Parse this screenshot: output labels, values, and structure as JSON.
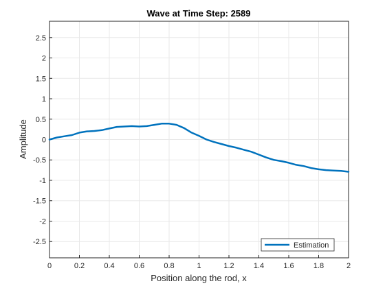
{
  "chart_data": {
    "type": "line",
    "title": "Wave at Time Step: 2589",
    "xlabel": "Position along the rod, x",
    "ylabel": "Amplitude",
    "xlim": [
      0,
      2
    ],
    "ylim": [
      -2.9,
      2.9
    ],
    "xticks": [
      0,
      0.2,
      0.4,
      0.6,
      0.8,
      1,
      1.2,
      1.4,
      1.6,
      1.8,
      2
    ],
    "xtick_labels": [
      "0",
      "0.2",
      "0.4",
      "0.6",
      "0.8",
      "1",
      "1.2",
      "1.4",
      "1.6",
      "1.8",
      "2"
    ],
    "yticks": [
      2.5,
      2,
      1.5,
      1,
      0.5,
      0,
      -0.5,
      -1,
      -1.5,
      -2,
      -2.5
    ],
    "ytick_labels": [
      "2.5",
      "2",
      "1.5",
      "1",
      "0.5",
      "0",
      "-0.5",
      "-1",
      "-1.5",
      "-2",
      "-2.5"
    ],
    "grid": true,
    "legend_position": "bottom-right",
    "series": [
      {
        "name": "Estimation",
        "color": "#0072BD",
        "x": [
          0,
          0.05,
          0.1,
          0.15,
          0.2,
          0.25,
          0.3,
          0.35,
          0.4,
          0.45,
          0.5,
          0.55,
          0.6,
          0.65,
          0.7,
          0.75,
          0.8,
          0.85,
          0.9,
          0.95,
          1.0,
          1.05,
          1.1,
          1.15,
          1.2,
          1.25,
          1.3,
          1.35,
          1.4,
          1.45,
          1.5,
          1.55,
          1.6,
          1.65,
          1.7,
          1.75,
          1.8,
          1.85,
          1.9,
          1.95,
          2.0
        ],
        "y": [
          0,
          0.05,
          0.08,
          0.11,
          0.17,
          0.2,
          0.21,
          0.23,
          0.27,
          0.31,
          0.32,
          0.33,
          0.32,
          0.33,
          0.36,
          0.39,
          0.39,
          0.36,
          0.28,
          0.17,
          0.09,
          0.0,
          -0.06,
          -0.11,
          -0.16,
          -0.2,
          -0.25,
          -0.3,
          -0.37,
          -0.44,
          -0.5,
          -0.53,
          -0.57,
          -0.62,
          -0.65,
          -0.7,
          -0.73,
          -0.75,
          -0.76,
          -0.77,
          -0.79
        ]
      }
    ]
  }
}
